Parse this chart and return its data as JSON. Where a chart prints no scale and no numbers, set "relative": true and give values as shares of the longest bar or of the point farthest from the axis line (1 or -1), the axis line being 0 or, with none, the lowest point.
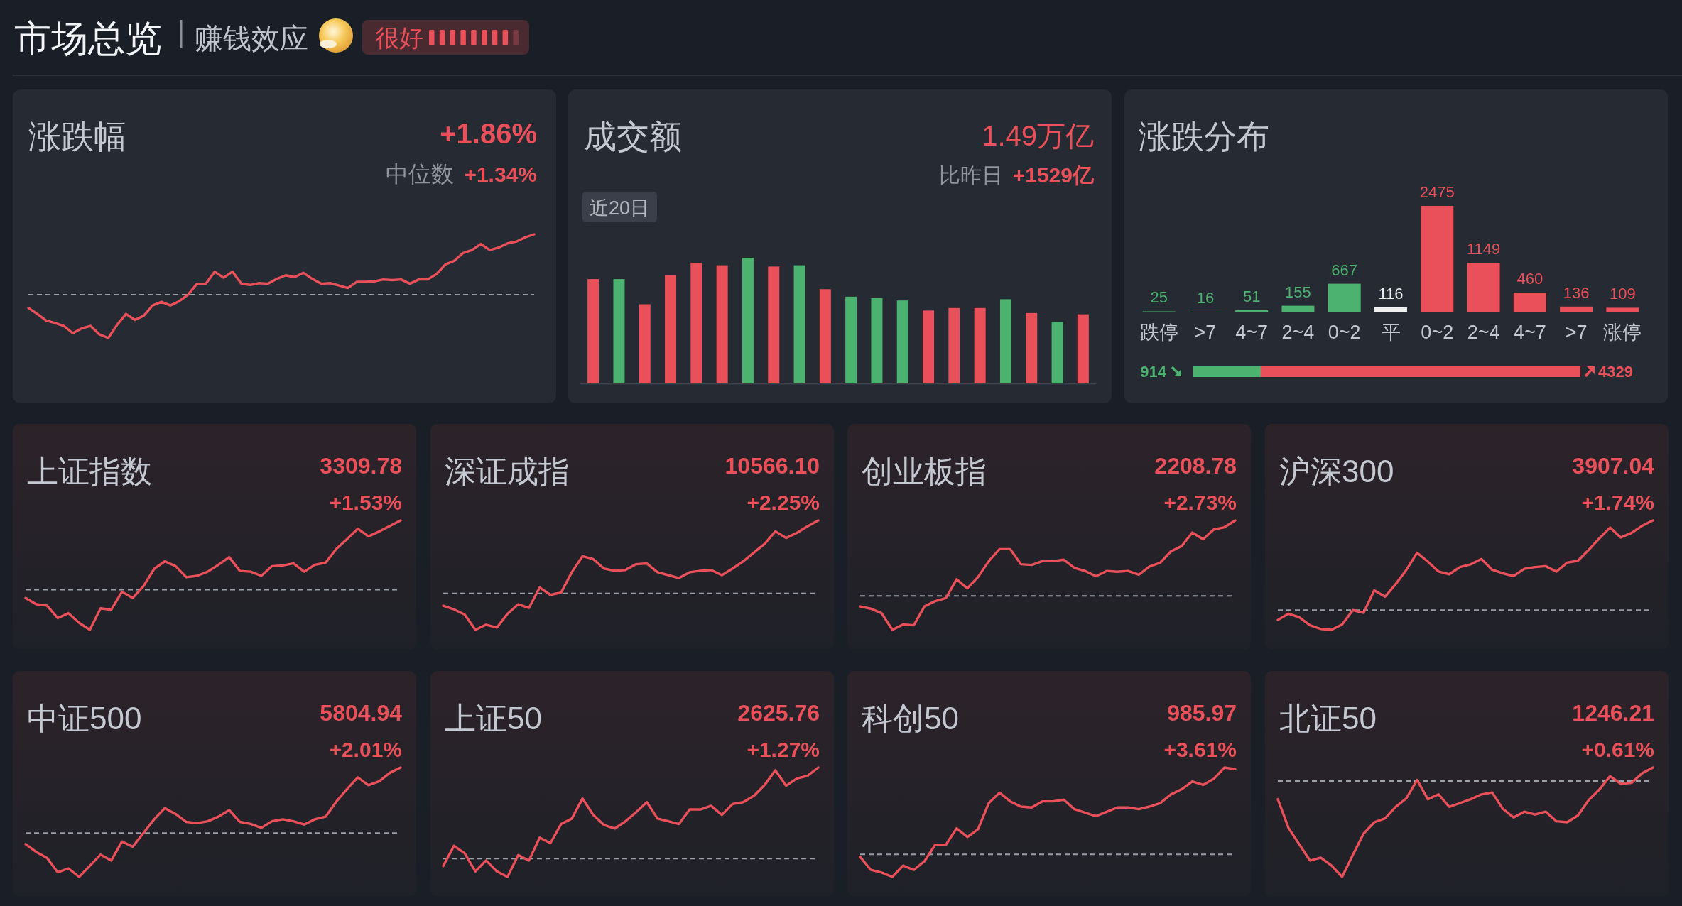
{
  "chart_data": [
    {
      "type": "other",
      "title": "市场总览",
      "subtitle": "赚钱效应",
      "annotations": [
        "很好"
      ]
    },
    {
      "type": "line",
      "title": "涨跌幅",
      "annotations": [
        "+1.86%",
        "中位数",
        "+1.34%"
      ],
      "color": "#ea5059",
      "relative": true,
      "ref_lines": [
        {
          "axis": "y",
          "value": 0,
          "color": "#9a9ea6",
          "line_style": "dashed"
        }
      ],
      "categories": [
        null,
        null,
        null,
        null,
        null,
        null,
        null,
        null,
        null,
        null,
        null,
        null,
        null,
        null,
        null,
        null,
        null,
        null,
        null,
        null,
        null,
        null,
        null,
        null,
        null,
        null,
        null,
        null,
        null,
        null,
        null,
        null,
        null,
        null,
        null,
        null,
        null,
        null,
        null,
        null,
        null,
        null,
        null,
        null,
        null,
        null,
        null,
        null,
        null,
        null,
        null,
        null,
        null,
        null,
        null,
        null,
        null,
        null
      ],
      "values": [
        -0.22,
        -0.32,
        -0.43,
        -0.47,
        -0.52,
        -0.64,
        -0.56,
        -0.52,
        -0.66,
        -0.72,
        -0.5,
        -0.32,
        -0.42,
        -0.35,
        -0.18,
        -0.12,
        -0.18,
        -0.11,
        0.0,
        0.18,
        0.18,
        0.38,
        0.28,
        0.38,
        0.18,
        0.16,
        0.19,
        0.18,
        0.26,
        0.32,
        0.29,
        0.36,
        0.26,
        0.18,
        0.19,
        0.15,
        0.11,
        0.21,
        0.21,
        0.22,
        0.25,
        0.24,
        0.25,
        0.18,
        0.25,
        0.25,
        0.34,
        0.5,
        0.56,
        0.69,
        0.74,
        0.84,
        0.74,
        0.78,
        0.85,
        0.88,
        0.95,
        1.0
      ]
    },
    {
      "type": "bar",
      "title": "成交额",
      "annotations": [
        "1.49万亿",
        "比昨日",
        "+1529亿",
        "近20日"
      ],
      "relative": true,
      "categories": [
        null,
        null,
        null,
        null,
        null,
        null,
        null,
        null,
        null,
        null,
        null,
        null,
        null,
        null,
        null,
        null,
        null,
        null,
        null,
        null
      ],
      "values": [
        0.83,
        0.83,
        0.63,
        0.86,
        0.96,
        0.94,
        1.0,
        0.93,
        0.94,
        0.75,
        0.69,
        0.68,
        0.66,
        0.58,
        0.6,
        0.6,
        0.67,
        0.56,
        0.49,
        0.55
      ],
      "colors": [
        "#ea5059",
        "#4cb26f",
        "#ea5059",
        "#ea5059",
        "#ea5059",
        "#ea5059",
        "#4cb26f",
        "#ea5059",
        "#4cb26f",
        "#ea5059",
        "#4cb26f",
        "#4cb26f",
        "#4cb26f",
        "#ea5059",
        "#ea5059",
        "#ea5059",
        "#4cb26f",
        "#ea5059",
        "#4cb26f",
        "#ea5059"
      ]
    },
    {
      "type": "bar",
      "title": "涨跌分布",
      "data_labels": true,
      "categories": [
        "跌停",
        ">7",
        "4~7",
        "2~4",
        "0~2",
        "平",
        "0~2",
        "2~4",
        "4~7",
        ">7",
        "涨停"
      ],
      "values": [
        25,
        16,
        51,
        155,
        667,
        116,
        2475,
        1149,
        460,
        136,
        109
      ],
      "colors": [
        "#4cb26f",
        "#4cb26f",
        "#4cb26f",
        "#4cb26f",
        "#4cb26f",
        "#eeeeee",
        "#ea5059",
        "#ea5059",
        "#ea5059",
        "#ea5059",
        "#ea5059"
      ]
    },
    {
      "type": "bar",
      "orientation": "horizontal",
      "stacked": true,
      "data_labels": true,
      "categories": [
        null
      ],
      "series": [
        {
          "color": "#4cb26f",
          "values": [
            914
          ]
        },
        {
          "color": "#ea5059",
          "values": [
            4329
          ]
        }
      ]
    },
    {
      "type": "line",
      "title": "上证指数",
      "annotations": [
        "3309.78",
        "+1.53%"
      ],
      "color": "#ea5059",
      "relative": true,
      "ref_lines": [
        {
          "axis": "y",
          "value": 0,
          "color": "#9a9ea6",
          "line_style": "dashed"
        }
      ],
      "categories": [
        null,
        null,
        null,
        null,
        null,
        null,
        null,
        null,
        null,
        null,
        null,
        null,
        null,
        null,
        null,
        null,
        null,
        null,
        null,
        null,
        null,
        null,
        null,
        null,
        null,
        null,
        null,
        null,
        null,
        null,
        null,
        null,
        null,
        null,
        null,
        null
      ],
      "values": [
        -0.12,
        -0.21,
        -0.23,
        -0.41,
        -0.34,
        -0.48,
        -0.58,
        -0.27,
        -0.29,
        -0.03,
        -0.12,
        0.05,
        0.3,
        0.41,
        0.34,
        0.18,
        0.2,
        0.26,
        0.36,
        0.47,
        0.27,
        0.26,
        0.2,
        0.34,
        0.35,
        0.38,
        0.26,
        0.36,
        0.39,
        0.59,
        0.73,
        0.88,
        0.77,
        0.84,
        0.92,
        1.0
      ]
    },
    {
      "type": "line",
      "title": "深证成指",
      "annotations": [
        "10566.10",
        "+2.25%"
      ],
      "color": "#ea5059",
      "relative": true,
      "ref_lines": [
        {
          "axis": "y",
          "value": 0,
          "color": "#9a9ea6",
          "line_style": "dashed"
        }
      ],
      "categories": [
        null,
        null,
        null,
        null,
        null,
        null,
        null,
        null,
        null,
        null,
        null,
        null,
        null,
        null,
        null,
        null,
        null,
        null,
        null,
        null,
        null,
        null,
        null,
        null,
        null,
        null,
        null,
        null,
        null,
        null,
        null,
        null,
        null,
        null,
        null,
        null
      ],
      "values": [
        -0.17,
        -0.22,
        -0.29,
        -0.5,
        -0.43,
        -0.47,
        -0.28,
        -0.15,
        -0.2,
        0.08,
        -0.02,
        0.01,
        0.29,
        0.51,
        0.47,
        0.34,
        0.31,
        0.32,
        0.4,
        0.41,
        0.29,
        0.25,
        0.21,
        0.29,
        0.31,
        0.32,
        0.25,
        0.34,
        0.44,
        0.56,
        0.68,
        0.85,
        0.76,
        0.83,
        0.92,
        1.0
      ]
    },
    {
      "type": "line",
      "title": "创业板指",
      "annotations": [
        "2208.78",
        "+2.73%"
      ],
      "color": "#ea5059",
      "relative": true,
      "ref_lines": [
        {
          "axis": "y",
          "value": 0,
          "color": "#9a9ea6",
          "line_style": "dashed"
        }
      ],
      "categories": [
        null,
        null,
        null,
        null,
        null,
        null,
        null,
        null,
        null,
        null,
        null,
        null,
        null,
        null,
        null,
        null,
        null,
        null,
        null,
        null,
        null,
        null,
        null,
        null,
        null,
        null,
        null,
        null,
        null,
        null,
        null,
        null,
        null,
        null,
        null,
        null
      ],
      "values": [
        -0.14,
        -0.17,
        -0.23,
        -0.45,
        -0.38,
        -0.39,
        -0.14,
        -0.07,
        -0.03,
        0.22,
        0.1,
        0.25,
        0.46,
        0.62,
        0.62,
        0.42,
        0.41,
        0.46,
        0.46,
        0.48,
        0.37,
        0.33,
        0.26,
        0.33,
        0.32,
        0.33,
        0.28,
        0.39,
        0.44,
        0.59,
        0.66,
        0.84,
        0.75,
        0.88,
        0.91,
        1.0
      ]
    },
    {
      "type": "line",
      "title": "沪深300",
      "annotations": [
        "3907.04",
        "+1.74%"
      ],
      "color": "#ea5059",
      "relative": true,
      "ref_lines": [
        {
          "axis": "y",
          "value": 0,
          "color": "#9a9ea6",
          "line_style": "dashed"
        }
      ],
      "categories": [
        null,
        null,
        null,
        null,
        null,
        null,
        null,
        null,
        null,
        null,
        null,
        null,
        null,
        null,
        null,
        null,
        null,
        null,
        null,
        null,
        null,
        null,
        null,
        null,
        null,
        null,
        null,
        null,
        null,
        null,
        null,
        null,
        null,
        null,
        null,
        null
      ],
      "values": [
        -0.11,
        -0.04,
        -0.08,
        -0.17,
        -0.21,
        -0.22,
        -0.16,
        0.0,
        -0.03,
        0.22,
        0.15,
        0.29,
        0.45,
        0.64,
        0.54,
        0.43,
        0.4,
        0.48,
        0.51,
        0.57,
        0.45,
        0.41,
        0.38,
        0.46,
        0.48,
        0.49,
        0.43,
        0.53,
        0.55,
        0.67,
        0.8,
        0.92,
        0.81,
        0.86,
        0.94,
        1.0
      ]
    },
    {
      "type": "line",
      "title": "中证500",
      "annotations": [
        "5804.94",
        "+2.01%"
      ],
      "color": "#ea5059",
      "relative": true,
      "ref_lines": [
        {
          "axis": "y",
          "value": 0,
          "color": "#9a9ea6",
          "line_style": "dashed"
        }
      ],
      "categories": [
        null,
        null,
        null,
        null,
        null,
        null,
        null,
        null,
        null,
        null,
        null,
        null,
        null,
        null,
        null,
        null,
        null,
        null,
        null,
        null,
        null,
        null,
        null,
        null,
        null,
        null,
        null,
        null,
        null,
        null,
        null,
        null,
        null,
        null,
        null,
        null
      ],
      "values": [
        -0.17,
        -0.29,
        -0.38,
        -0.6,
        -0.54,
        -0.67,
        -0.5,
        -0.33,
        -0.42,
        -0.13,
        -0.21,
        0.0,
        0.21,
        0.38,
        0.29,
        0.17,
        0.15,
        0.18,
        0.25,
        0.35,
        0.17,
        0.14,
        0.08,
        0.18,
        0.21,
        0.18,
        0.13,
        0.21,
        0.25,
        0.48,
        0.67,
        0.85,
        0.73,
        0.79,
        0.92,
        1.0
      ]
    },
    {
      "type": "line",
      "title": "上证50",
      "annotations": [
        "2625.76",
        "+1.27%"
      ],
      "color": "#ea5059",
      "relative": true,
      "ref_lines": [
        {
          "axis": "y",
          "value": 0,
          "color": "#9a9ea6",
          "line_style": "dashed"
        }
      ],
      "categories": [
        null,
        null,
        null,
        null,
        null,
        null,
        null,
        null,
        null,
        null,
        null,
        null,
        null,
        null,
        null,
        null,
        null,
        null,
        null,
        null,
        null,
        null,
        null,
        null,
        null,
        null,
        null,
        null,
        null,
        null,
        null,
        null,
        null,
        null,
        null,
        null
      ],
      "values": [
        -0.08,
        0.14,
        0.06,
        -0.14,
        -0.02,
        -0.14,
        -0.2,
        0.04,
        -0.02,
        0.23,
        0.17,
        0.38,
        0.44,
        0.66,
        0.48,
        0.37,
        0.33,
        0.41,
        0.51,
        0.62,
        0.44,
        0.41,
        0.38,
        0.54,
        0.54,
        0.58,
        0.48,
        0.6,
        0.62,
        0.69,
        0.81,
        0.97,
        0.8,
        0.88,
        0.91,
        1.0
      ]
    },
    {
      "type": "line",
      "title": "科创50",
      "annotations": [
        "985.97",
        "+3.61%"
      ],
      "color": "#ea5059",
      "relative": true,
      "ref_lines": [
        {
          "axis": "y",
          "value": 0,
          "color": "#9a9ea6",
          "line_style": "dashed"
        }
      ],
      "categories": [
        null,
        null,
        null,
        null,
        null,
        null,
        null,
        null,
        null,
        null,
        null,
        null,
        null,
        null,
        null,
        null,
        null,
        null,
        null,
        null,
        null,
        null,
        null,
        null,
        null,
        null,
        null,
        null,
        null,
        null,
        null,
        null,
        null,
        null,
        null,
        null
      ],
      "values": [
        -0.03,
        -0.18,
        -0.21,
        -0.26,
        -0.13,
        -0.18,
        -0.08,
        0.11,
        0.11,
        0.3,
        0.2,
        0.29,
        0.59,
        0.71,
        0.61,
        0.55,
        0.54,
        0.61,
        0.61,
        0.63,
        0.52,
        0.48,
        0.44,
        0.49,
        0.54,
        0.54,
        0.52,
        0.55,
        0.59,
        0.69,
        0.75,
        0.84,
        0.8,
        0.87,
        1.0,
        0.98
      ]
    },
    {
      "type": "line",
      "title": "北证50",
      "annotations": [
        "1246.21",
        "+0.61%"
      ],
      "color": "#ea5059",
      "relative": true,
      "ref_lines": [
        {
          "axis": "y",
          "value": 0,
          "color": "#9a9ea6",
          "line_style": "dashed"
        }
      ],
      "categories": [
        null,
        null,
        null,
        null,
        null,
        null,
        null,
        null,
        null,
        null,
        null,
        null,
        null,
        null,
        null,
        null,
        null,
        null,
        null,
        null,
        null,
        null,
        null,
        null,
        null,
        null,
        null,
        null,
        null,
        null,
        null,
        null,
        null,
        null,
        null,
        null
      ],
      "values": [
        -0.19,
        -0.49,
        -0.66,
        -0.83,
        -0.8,
        -0.88,
        -1.0,
        -0.77,
        -0.55,
        -0.43,
        -0.39,
        -0.27,
        -0.18,
        0.01,
        -0.19,
        -0.14,
        -0.27,
        -0.23,
        -0.19,
        -0.14,
        -0.12,
        -0.29,
        -0.38,
        -0.32,
        -0.35,
        -0.32,
        -0.42,
        -0.43,
        -0.36,
        -0.2,
        -0.09,
        0.05,
        -0.03,
        -0.02,
        0.08,
        0.14
      ]
    }
  ]
}
